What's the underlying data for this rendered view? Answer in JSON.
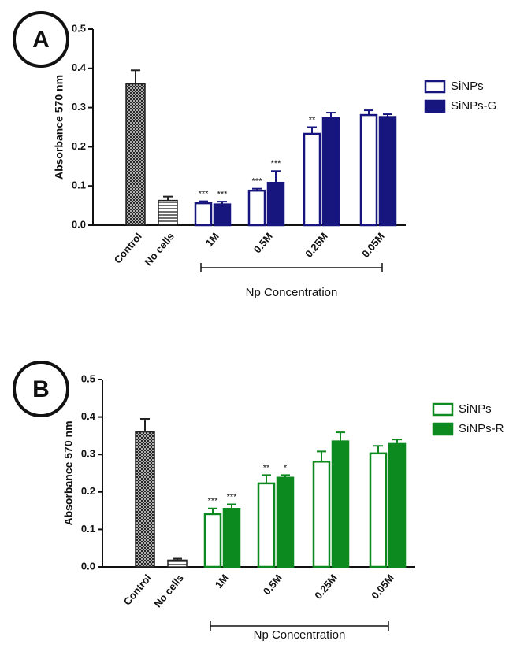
{
  "chart_data": [
    {
      "type": "bar",
      "panel_label": "A",
      "y_label": "Absorbance 570 nm",
      "x_group_label": "Np Concentration",
      "categories": [
        "Control",
        "No cells",
        "1M",
        "0.5M",
        "0.25M",
        "0.05M"
      ],
      "ylim": [
        0,
        0.5
      ],
      "yticks": [
        {
          "value": 0,
          "label": "0.0"
        },
        0.1,
        0.2,
        0.3,
        0.4,
        0.5
      ],
      "controls": {
        "values": [
          0.36,
          0.063,
          null,
          null,
          null,
          null
        ],
        "errors": [
          0.035,
          0.01,
          null,
          null,
          null,
          null
        ],
        "color": "#222222"
      },
      "series": [
        {
          "name": "SiNPs",
          "color": "#16167e",
          "filled": false,
          "values": [
            null,
            null,
            0.058,
            0.09,
            0.235,
            0.283
          ],
          "errors": [
            null,
            null,
            0.003,
            0.003,
            0.015,
            0.01
          ],
          "labels": [
            null,
            null,
            "***",
            "***",
            "**",
            null
          ]
        },
        {
          "name": "SiNPs-G",
          "color": "#16167e",
          "filled": true,
          "values": [
            null,
            null,
            0.055,
            0.11,
            0.275,
            0.278
          ],
          "errors": [
            null,
            null,
            0.005,
            0.028,
            0.012,
            0.005
          ],
          "labels": [
            null,
            null,
            "***",
            "***",
            null,
            null
          ]
        }
      ]
    },
    {
      "type": "bar",
      "panel_label": "B",
      "y_label": "Absorbance 570 nm",
      "x_group_label": "Np Concentration",
      "categories": [
        "Control",
        "No cells",
        "1M",
        "0.5M",
        "0.25M",
        "0.05M"
      ],
      "ylim": [
        0,
        0.5
      ],
      "yticks": [
        {
          "value": 0,
          "label": "0.0"
        },
        0.1,
        0.2,
        0.3,
        0.4,
        0.5
      ],
      "controls": {
        "values": [
          0.36,
          0.018,
          null,
          null,
          null,
          null
        ],
        "errors": [
          0.035,
          0.004,
          null,
          null,
          null,
          null
        ],
        "color": "#222222"
      },
      "series": [
        {
          "name": "SiNPs",
          "color": "#0d8a1f",
          "filled": false,
          "values": [
            null,
            null,
            0.143,
            0.225,
            0.283,
            0.305
          ],
          "errors": [
            null,
            null,
            0.013,
            0.02,
            0.025,
            0.018
          ],
          "labels": [
            null,
            null,
            "***",
            "**",
            null,
            null
          ]
        },
        {
          "name": "SiNPs-R",
          "color": "#0d8a1f",
          "filled": true,
          "values": [
            null,
            null,
            0.157,
            0.24,
            0.337,
            0.33
          ],
          "errors": [
            null,
            null,
            0.01,
            0.005,
            0.022,
            0.01
          ],
          "labels": [
            null,
            null,
            "***",
            "*",
            null,
            null
          ]
        }
      ]
    }
  ]
}
